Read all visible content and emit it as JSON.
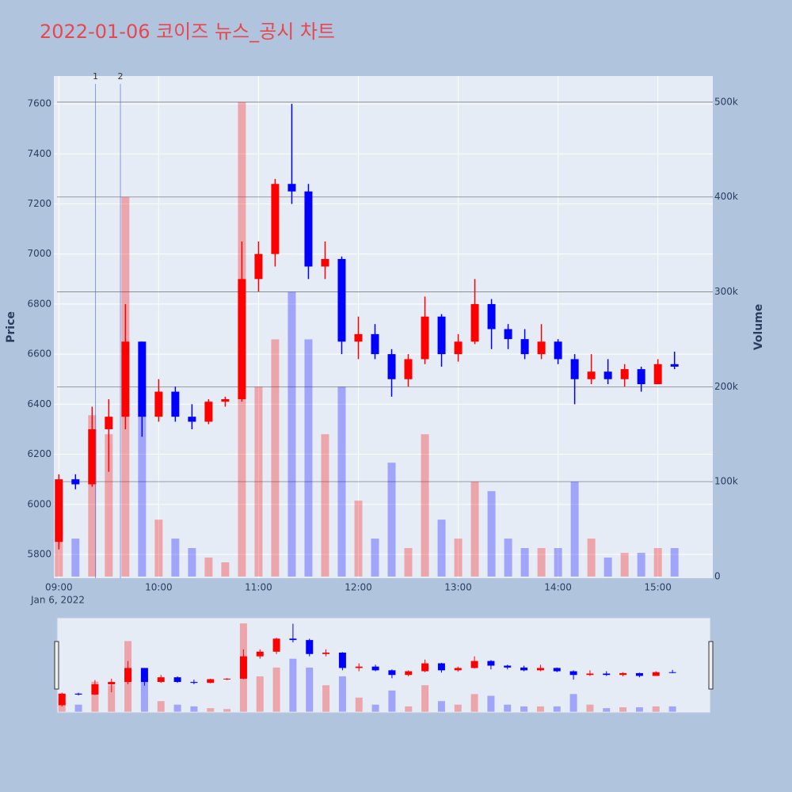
{
  "chart_data": {
    "type": "candlestick",
    "title": "2022-01-06 코이즈 뉴스_공시 차트",
    "yaxis_title": "Price",
    "y2axis_title": "Volume",
    "x_date_label": "Jan 6, 2022",
    "up_color": "#ff0000",
    "down_color": "#0000ff",
    "xlim": [
      "08:57",
      "15:33"
    ],
    "xticks": [
      "09:00",
      "10:00",
      "11:00",
      "12:00",
      "13:00",
      "14:00",
      "15:00"
    ],
    "ylim": [
      5705,
      7711
    ],
    "yticks": [
      5800,
      6000,
      6200,
      6400,
      6600,
      6800,
      7000,
      7200,
      7400,
      7600
    ],
    "y2lim": [
      -1700,
      527500
    ],
    "y2ticks": [
      0,
      {
        "value": 100000,
        "label": "100k"
      },
      {
        "value": 200000,
        "label": "200k"
      },
      {
        "value": 300000,
        "label": "300k"
      },
      {
        "value": 400000,
        "label": "400k"
      },
      {
        "value": 500000,
        "label": "500k"
      }
    ],
    "annotations": [
      {
        "text": "1",
        "x": "09:22"
      },
      {
        "text": "2",
        "x": "09:37"
      }
    ],
    "x": [
      "09:00",
      "09:10",
      "09:20",
      "09:30",
      "09:40",
      "09:50",
      "10:00",
      "10:10",
      "10:20",
      "10:30",
      "10:40",
      "10:50",
      "11:00",
      "11:10",
      "11:20",
      "11:30",
      "11:40",
      "11:50",
      "12:00",
      "12:10",
      "12:20",
      "12:30",
      "12:40",
      "12:50",
      "13:00",
      "13:10",
      "13:20",
      "13:30",
      "13:40",
      "13:50",
      "14:00",
      "14:10",
      "14:20",
      "14:30",
      "14:40",
      "14:50",
      "15:00",
      "15:10"
    ],
    "open": [
      5850,
      6100,
      6080,
      6300,
      6350,
      6650,
      6350,
      6450,
      6350,
      6330,
      6410,
      6420,
      6900,
      7000,
      7280,
      7250,
      6950,
      6980,
      6650,
      6680,
      6600,
      6500,
      6580,
      6750,
      6600,
      6650,
      6800,
      6700,
      6660,
      6600,
      6650,
      6580,
      6500,
      6530,
      6500,
      6540,
      6480,
      6560
    ],
    "high": [
      6120,
      6120,
      6390,
      6420,
      6800,
      6650,
      6500,
      6470,
      6400,
      6420,
      6430,
      7050,
      7050,
      7300,
      7600,
      7280,
      7050,
      6990,
      6750,
      6720,
      6620,
      6600,
      6830,
      6760,
      6680,
      6900,
      6820,
      6720,
      6700,
      6720,
      6660,
      6600,
      6600,
      6580,
      6560,
      6550,
      6580,
      6610
    ],
    "low": [
      5820,
      6060,
      6070,
      6130,
      6300,
      6270,
      6330,
      6330,
      6300,
      6320,
      6390,
      6410,
      6850,
      6950,
      7200,
      6900,
      6900,
      6600,
      6580,
      6580,
      6430,
      6470,
      6560,
      6550,
      6570,
      6640,
      6620,
      6620,
      6580,
      6580,
      6560,
      6400,
      6480,
      6480,
      6470,
      6450,
      6480,
      6540
    ],
    "close": [
      6100,
      6080,
      6300,
      6350,
      6650,
      6350,
      6450,
      6350,
      6330,
      6410,
      6420,
      6900,
      7000,
      7280,
      7250,
      6950,
      6980,
      6650,
      6680,
      6600,
      6500,
      6580,
      6750,
      6600,
      6650,
      6800,
      6700,
      6660,
      6600,
      6650,
      6580,
      6500,
      6530,
      6500,
      6540,
      6480,
      6560,
      6550
    ],
    "volume": [
      60000,
      40000,
      170000,
      150000,
      400000,
      200000,
      60000,
      40000,
      30000,
      20000,
      15000,
      500000,
      200000,
      250000,
      300000,
      250000,
      150000,
      200000,
      80000,
      40000,
      120000,
      30000,
      150000,
      60000,
      40000,
      100000,
      90000,
      40000,
      30000,
      30000,
      30000,
      100000,
      40000,
      20000,
      25000,
      25000,
      30000,
      30000
    ]
  }
}
